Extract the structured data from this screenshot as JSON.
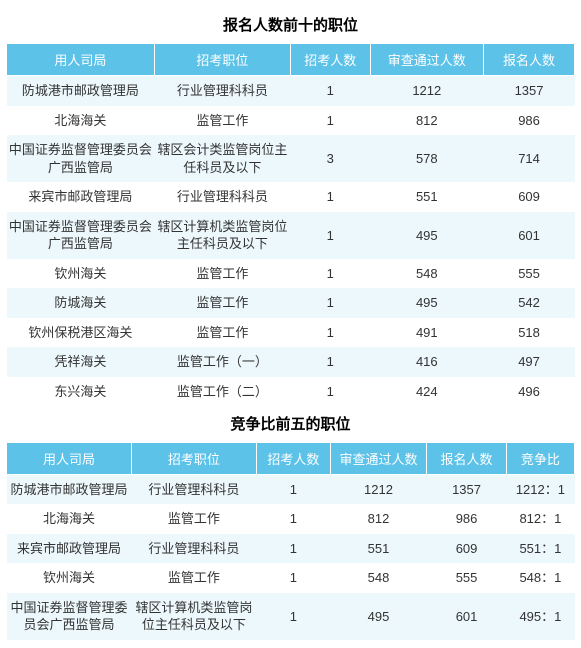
{
  "colors": {
    "header_bg": "#5cc2e8",
    "header_text": "#ffffff",
    "row_odd_bg": "#edf8fc",
    "row_even_bg": "#ffffff",
    "cell_text": "#333333",
    "title_text": "#000000"
  },
  "typography": {
    "title_fontsize": 15,
    "title_weight": "bold",
    "header_fontsize": 13,
    "cell_fontsize": 13,
    "font_family": "Microsoft YaHei, SimSun, Arial, sans-serif"
  },
  "table1": {
    "title": "报名人数前十的职位",
    "columns": [
      "用人司局",
      "招考职位",
      "招考人数",
      "审查通过人数",
      "报名人数"
    ],
    "col_widths_pct": [
      26,
      24,
      14,
      20,
      16
    ],
    "rows": [
      [
        "防城港市邮政管理局",
        "行业管理科科员",
        "1",
        "1212",
        "1357"
      ],
      [
        "北海海关",
        "监管工作",
        "1",
        "812",
        "986"
      ],
      [
        "中国证券监督管理委员会广西监管局",
        "辖区会计类监管岗位主任科员及以下",
        "3",
        "578",
        "714"
      ],
      [
        "来宾市邮政管理局",
        "行业管理科科员",
        "1",
        "551",
        "609"
      ],
      [
        "中国证券监督管理委员会广西监管局",
        "辖区计算机类监管岗位主任科员及以下",
        "1",
        "495",
        "601"
      ],
      [
        "钦州海关",
        "监管工作",
        "1",
        "548",
        "555"
      ],
      [
        "防城海关",
        "监管工作",
        "1",
        "495",
        "542"
      ],
      [
        "钦州保税港区海关",
        "监管工作",
        "1",
        "491",
        "518"
      ],
      [
        "凭祥海关",
        "监管工作（一）",
        "1",
        "416",
        "497"
      ],
      [
        "东兴海关",
        "监管工作（二）",
        "1",
        "424",
        "496"
      ]
    ]
  },
  "table2": {
    "title": "竞争比前五的职位",
    "columns": [
      "用人司局",
      "招考职位",
      "招考人数",
      "审查通过人数",
      "报名人数",
      "竞争比"
    ],
    "col_widths_pct": [
      22,
      22,
      13,
      17,
      14,
      12
    ],
    "rows": [
      [
        "防城港市邮政管理局",
        "行业管理科科员",
        "1",
        "1212",
        "1357",
        "1212：1"
      ],
      [
        "北海海关",
        "监管工作",
        "1",
        "812",
        "986",
        "812：1"
      ],
      [
        "来宾市邮政管理局",
        "行业管理科科员",
        "1",
        "551",
        "609",
        "551：1"
      ],
      [
        "钦州海关",
        "监管工作",
        "1",
        "548",
        "555",
        "548：1"
      ],
      [
        "中国证券监督管理委员会广西监管局",
        "辖区计算机类监管岗位主任科员及以下",
        "1",
        "495",
        "601",
        "495：1"
      ]
    ]
  }
}
